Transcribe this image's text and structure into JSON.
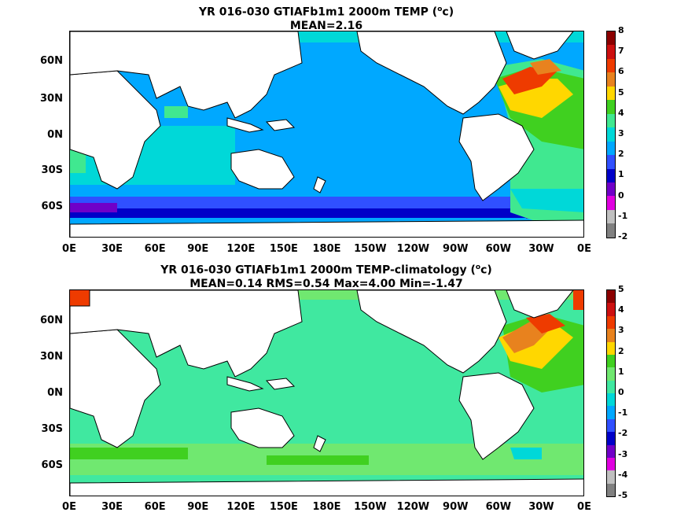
{
  "panels": [
    {
      "title_line1": "YR 016-030 GTIAFb1m1 2000m TEMP (",
      "title_unit_sup": "o",
      "title_unit_end": "c)",
      "title_line2": "MEAN=2.16",
      "colorbar": {
        "labels": [
          "8",
          "7",
          "6",
          "5",
          "4",
          "3",
          "2",
          "1",
          "0",
          "-1",
          "-2"
        ],
        "colors": [
          "#8b0000",
          "#cc1010",
          "#ee3b00",
          "#e8821e",
          "#ffd700",
          "#40d020",
          "#40e890",
          "#00d8d8",
          "#00a8ff",
          "#3050ff",
          "#0000c8",
          "#7000c8",
          "#e000e0",
          "#c0c0c0",
          "#808080"
        ]
      }
    },
    {
      "title_line1": "YR 016-030 GTIAFb1m1 2000m TEMP-climatology (",
      "title_unit_sup": "o",
      "title_unit_end": "c)",
      "title_line2": "MEAN=0.14   RMS=0.54   Max=4.00   Min=-1.47",
      "colorbar": {
        "labels": [
          "5",
          "4",
          "3",
          "2",
          "1",
          "0",
          "-1",
          "-2",
          "-3",
          "-4",
          "-5"
        ],
        "colors": [
          "#8b0000",
          "#cc1010",
          "#ee3b00",
          "#e8821e",
          "#ffd700",
          "#40d020",
          "#70e870",
          "#40e8a0",
          "#00d8d8",
          "#00a8ff",
          "#3050ff",
          "#0000c8",
          "#7000c8",
          "#e000e0",
          "#c0c0c0",
          "#808080"
        ]
      }
    }
  ],
  "y_ticks": [
    "60N",
    "30N",
    "0N",
    "30S",
    "60S"
  ],
  "x_ticks": [
    "0E",
    "30E",
    "60E",
    "90E",
    "120E",
    "150E",
    "180E",
    "150W",
    "120W",
    "90W",
    "60W",
    "30W",
    "0E"
  ]
}
